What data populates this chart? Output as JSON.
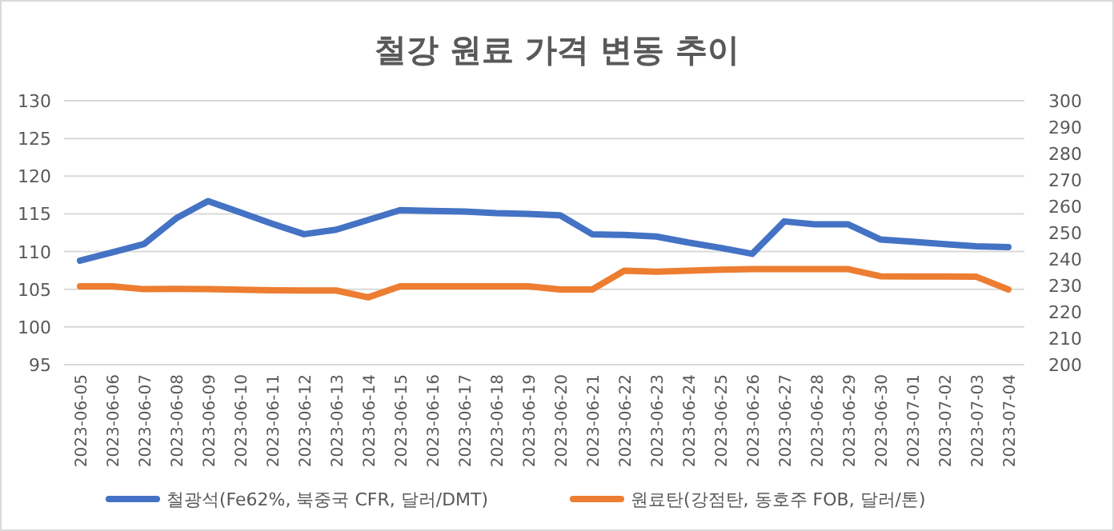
{
  "chart_data": {
    "type": "line",
    "title": "철강 원료 가격 변동 추이",
    "categories": [
      "2023-06-05",
      "2023-06-06",
      "2023-06-07",
      "2023-06-08",
      "2023-06-09",
      "2023-06-10",
      "2023-06-11",
      "2023-06-12",
      "2023-06-13",
      "2023-06-14",
      "2023-06-15",
      "2023-06-16",
      "2023-06-17",
      "2023-06-18",
      "2023-06-19",
      "2023-06-20",
      "2023-06-21",
      "2023-06-22",
      "2023-06-23",
      "2023-06-24",
      "2023-06-25",
      "2023-06-26",
      "2023-06-27",
      "2023-06-28",
      "2023-06-29",
      "2023-06-30",
      "2023-07-01",
      "2023-07-02",
      "2023-07-03",
      "2023-07-04"
    ],
    "series": [
      {
        "name": "철광석(Fe62%, 북중국 CFR, 달러/DMT)",
        "color": "#4472c4",
        "values": [
          108.8,
          109.9,
          111.0,
          114.4,
          116.7,
          115.2,
          113.7,
          112.3,
          112.9,
          114.2,
          115.5,
          115.4,
          115.3,
          115.1,
          115.0,
          114.8,
          112.3,
          112.2,
          112.0,
          111.2,
          110.5,
          109.7,
          114.0,
          113.6,
          113.6,
          111.6,
          111.3,
          111.0,
          110.7,
          110.6
        ]
      },
      {
        "name": "원료탄(강점탄, 동호주 FOB, 달러/톤)",
        "color": "#ed7d31",
        "axis": "y2",
        "values": [
          229.7,
          229.7,
          228.6,
          228.7,
          228.6,
          228.4,
          228.2,
          228.1,
          228.1,
          225.5,
          229.7,
          229.7,
          229.7,
          229.7,
          229.7,
          228.5,
          228.5,
          235.6,
          235.2,
          235.6,
          236.0,
          236.2,
          236.2,
          236.2,
          236.2,
          233.5,
          233.4,
          233.4,
          233.3,
          228.5
        ]
      }
    ],
    "ylim": [
      95,
      130
    ],
    "yticks": [
      95,
      100,
      105,
      110,
      115,
      120,
      125,
      130
    ],
    "y2lim": [
      200,
      300
    ],
    "y2ticks": [
      200,
      210,
      220,
      230,
      240,
      250,
      260,
      270,
      280,
      290,
      300
    ],
    "grid": "y",
    "legend": "bottom",
    "marker": "none",
    "line_style": "solid"
  }
}
